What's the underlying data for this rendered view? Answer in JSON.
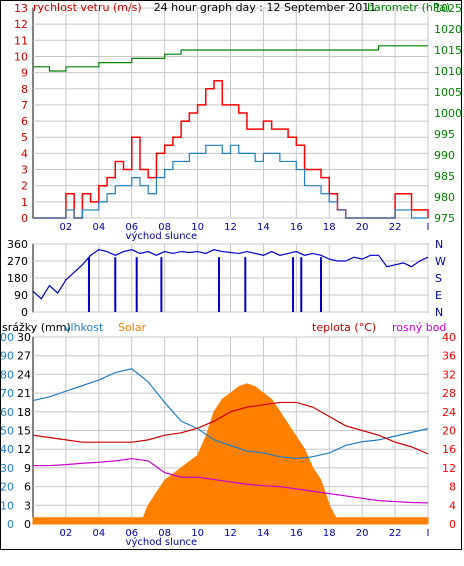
{
  "chart_data": [
    {
      "type": "line",
      "title": "24 hour graph day : 12 September 2011",
      "x_ticks": [
        "02",
        "04",
        "06",
        "08",
        "10",
        "12",
        "14",
        "16",
        "18",
        "20",
        "22",
        "I"
      ],
      "x_note": "východ slunce",
      "xlim": [
        0,
        24
      ],
      "left_axis": {
        "label": "rychlost vetru (m/s)",
        "color": "#ff0000",
        "ylim": [
          0,
          13
        ],
        "ticks": [
          0,
          1,
          2,
          3,
          4,
          5,
          6,
          7,
          8,
          9,
          10,
          11,
          12,
          13
        ]
      },
      "right_axis": {
        "label": "barometr (hPa)",
        "color": "#008000",
        "ylim": [
          975,
          1025
        ],
        "ticks": [
          975,
          980,
          985,
          990,
          995,
          1000,
          1005,
          1010,
          1015,
          1020,
          1025
        ]
      },
      "grid": true,
      "series": [
        {
          "name": "gust",
          "axis": "left",
          "color": "#ff0000",
          "x": [
            0,
            0.5,
            1,
            1.5,
            2,
            2.5,
            3,
            3.5,
            4,
            4.5,
            5,
            5.5,
            6,
            6.5,
            7,
            7.5,
            8,
            8.5,
            9,
            9.5,
            10,
            10.5,
            11,
            11.5,
            12,
            12.5,
            13,
            13.5,
            14,
            14.5,
            15,
            15.5,
            16,
            16.5,
            17,
            17.5,
            18,
            18.5,
            19,
            19.5,
            20,
            20.5,
            21,
            21.5,
            22,
            22.5,
            23,
            23.5,
            24
          ],
          "y": [
            0,
            0,
            0,
            0,
            1.5,
            0,
            1.5,
            1,
            2,
            2.5,
            3.5,
            3,
            5,
            3,
            2.5,
            4,
            4.5,
            5,
            6,
            6.5,
            7,
            8,
            8.5,
            7,
            7,
            6.5,
            5.5,
            5.5,
            6,
            5.5,
            5.5,
            5,
            4.5,
            3,
            3,
            2.5,
            1.5,
            0.5,
            0,
            0,
            0,
            0,
            0,
            0,
            1.5,
            1.5,
            0.5,
            0.5,
            0
          ]
        },
        {
          "name": "speed",
          "axis": "left",
          "color": "#1f7fbf",
          "x": [
            0,
            0.5,
            1,
            1.5,
            2,
            2.5,
            3,
            3.5,
            4,
            4.5,
            5,
            5.5,
            6,
            6.5,
            7,
            7.5,
            8,
            8.5,
            9,
            9.5,
            10,
            10.5,
            11,
            11.5,
            12,
            12.5,
            13,
            13.5,
            14,
            14.5,
            15,
            15.5,
            16,
            16.5,
            17,
            17.5,
            18,
            18.5,
            19,
            19.5,
            20,
            20.5,
            21,
            21.5,
            22,
            22.5,
            23,
            23.5,
            24
          ],
          "y": [
            0,
            0,
            0,
            0,
            0.5,
            0,
            0.5,
            0.5,
            1,
            1.5,
            2,
            2,
            2.5,
            2,
            1.5,
            2.5,
            3,
            3.5,
            3.5,
            4,
            4,
            4.5,
            4.5,
            4,
            4.5,
            4,
            4,
            3.5,
            4,
            4,
            3.5,
            3.5,
            3,
            2,
            2,
            1.5,
            1,
            0.5,
            0,
            0,
            0,
            0,
            0,
            0,
            0.5,
            0.5,
            0,
            0,
            0
          ]
        },
        {
          "name": "barometr",
          "axis": "right",
          "color": "#008000",
          "x": [
            0,
            1,
            2,
            3,
            4,
            5,
            6,
            7,
            8,
            9,
            10,
            11,
            12,
            13,
            14,
            15,
            16,
            17,
            18,
            19,
            20,
            21,
            22,
            23,
            24
          ],
          "y": [
            1011,
            1010,
            1011,
            1011,
            1012,
            1012,
            1013,
            1013,
            1014,
            1015,
            1015,
            1015,
            1015,
            1015,
            1015,
            1015,
            1015,
            1015,
            1015,
            1015,
            1015,
            1016,
            1016,
            1016,
            1016
          ]
        }
      ]
    },
    {
      "type": "line",
      "x_ticks": [
        "02",
        "04",
        "06",
        "08",
        "10",
        "12",
        "14",
        "16",
        "18",
        "20",
        "22",
        "I"
      ],
      "left_axis": {
        "ylim": [
          0,
          360
        ],
        "ticks": [
          0,
          90,
          180,
          270,
          360
        ]
      },
      "right_axis": {
        "ticks": [
          "N",
          "W",
          "S",
          "E",
          "N"
        ]
      },
      "grid": true,
      "series": [
        {
          "name": "smer vetru",
          "color": "#0000cc",
          "x": [
            0,
            0.5,
            1,
            1.5,
            2,
            2.5,
            3,
            3.5,
            4,
            4.5,
            5,
            5.5,
            6,
            6.5,
            7,
            7.5,
            8,
            8.5,
            9,
            9.5,
            10,
            10.5,
            11,
            11.5,
            12,
            12.5,
            13,
            13.5,
            14,
            14.5,
            15,
            15.5,
            16,
            16.5,
            17,
            17.5,
            18,
            18.5,
            19,
            19.5,
            20,
            20.5,
            21,
            21.5,
            22,
            22.5,
            23,
            23.5,
            24
          ],
          "y": [
            110,
            70,
            140,
            100,
            170,
            210,
            250,
            300,
            330,
            320,
            300,
            320,
            330,
            310,
            320,
            300,
            320,
            310,
            320,
            315,
            320,
            310,
            330,
            320,
            315,
            310,
            320,
            310,
            300,
            320,
            300,
            310,
            320,
            300,
            310,
            300,
            280,
            270,
            270,
            290,
            280,
            300,
            300,
            240,
            250,
            260,
            240,
            270,
            290
          ]
        },
        {
          "name": "drops",
          "color": "#0000cc",
          "x": [
            3.4,
            5.0,
            6.3,
            7.8,
            11.3,
            12.9,
            15.8,
            16.3,
            17.5
          ],
          "y": [
            0,
            0,
            0,
            0,
            0,
            0,
            0,
            0,
            0
          ]
        }
      ]
    },
    {
      "type": "area",
      "legend": [
        "srážky (mm)",
        "vlhkost",
        "Solar",
        "teplota (°C)",
        "rosný bod"
      ],
      "x_ticks": [
        "02",
        "04",
        "06",
        "08",
        "10",
        "12",
        "14",
        "16",
        "18",
        "20",
        "22",
        "I"
      ],
      "x_note": "východ slunce",
      "axes": [
        {
          "label": "srážky (mm)",
          "color": "#000000",
          "ylim": [
            0,
            30
          ],
          "ticks": [
            0,
            3,
            6,
            9,
            12,
            15,
            18,
            21,
            24,
            27,
            30
          ]
        },
        {
          "label": "vlhkost",
          "color": "#1f7fbf",
          "ylim": [
            0,
            100
          ],
          "ticks": [
            0,
            10,
            20,
            30,
            40,
            50,
            60,
            70,
            80,
            90,
            100
          ]
        },
        {
          "label": "teplota (°C)",
          "color": "#ff0000",
          "ylim": [
            0,
            40
          ],
          "ticks": [
            0,
            4,
            8,
            12,
            16,
            20,
            24,
            28,
            32,
            36,
            40
          ]
        }
      ],
      "grid": true,
      "series": [
        {
          "name": "Solar",
          "color": "#ff8000",
          "axis": "srážky (mm)",
          "x": [
            0,
            6,
            6.7,
            7,
            7.5,
            8,
            8.5,
            9,
            9.5,
            10,
            10.5,
            11,
            11.5,
            12,
            12.5,
            13,
            13.5,
            14,
            14.5,
            15,
            15.5,
            16,
            16.5,
            17,
            17.5,
            18,
            18.4,
            24
          ],
          "y": [
            1,
            1,
            1,
            3,
            5,
            7,
            8,
            9,
            10,
            11,
            14,
            18,
            20,
            21,
            22,
            22.5,
            22,
            21,
            20,
            18,
            16,
            14,
            12,
            9,
            7,
            3,
            1,
            1
          ]
        },
        {
          "name": "vlhkost",
          "color": "#1f7fbf",
          "axis": "vlhkost",
          "x": [
            0,
            1,
            2,
            3,
            4,
            5,
            6,
            7,
            8,
            9,
            10,
            11,
            12,
            13,
            14,
            15,
            16,
            17,
            18,
            19,
            20,
            21,
            22,
            23,
            24
          ],
          "y": [
            66,
            68,
            71,
            74,
            77,
            81,
            83,
            76,
            65,
            55,
            51,
            45,
            42,
            39,
            38,
            36,
            35,
            36,
            38,
            42,
            44,
            45,
            47,
            49,
            51
          ]
        },
        {
          "name": "teplota (°C)",
          "color": "#cc0000",
          "axis": "teplota (°C)",
          "x": [
            0,
            1,
            2,
            3,
            4,
            5,
            6,
            7,
            8,
            9,
            10,
            11,
            12,
            13,
            14,
            15,
            16,
            17,
            18,
            19,
            20,
            21,
            22,
            23,
            24
          ],
          "y": [
            19,
            18.5,
            18,
            17.5,
            17.5,
            17.5,
            17.5,
            18,
            19,
            19.5,
            20.5,
            22,
            24,
            25,
            25.5,
            26,
            26,
            25,
            23,
            21,
            20,
            19,
            17.5,
            16.5,
            15
          ]
        },
        {
          "name": "rosný bod",
          "color": "#cc00cc",
          "axis": "teplota (°C)",
          "x": [
            0,
            1,
            2,
            3,
            4,
            5,
            6,
            7,
            8,
            9,
            10,
            11,
            12,
            13,
            14,
            15,
            16,
            17,
            18,
            19,
            20,
            21,
            22,
            23,
            24
          ],
          "y": [
            12.5,
            12.5,
            12.7,
            13,
            13.2,
            13.5,
            14,
            13.5,
            11,
            10,
            10,
            9.5,
            9,
            8.5,
            8.2,
            8,
            7.5,
            7,
            6.5,
            6,
            5.5,
            5,
            4.8,
            4.6,
            4.5
          ]
        }
      ]
    }
  ]
}
